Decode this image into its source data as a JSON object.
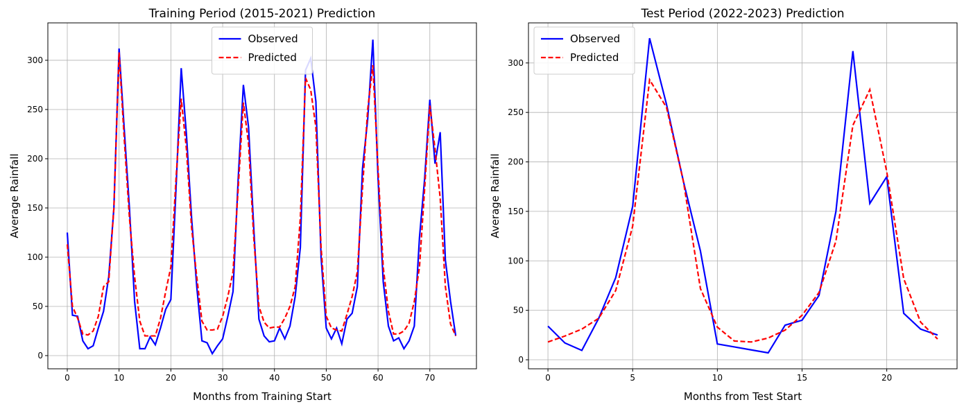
{
  "chart_data": [
    {
      "type": "line",
      "title": "Training Period (2015-2021) Prediction",
      "x_label": "Months from Training Start",
      "y_label": "Average Rainfall",
      "x": [
        0,
        1,
        2,
        3,
        4,
        5,
        6,
        7,
        8,
        9,
        10,
        11,
        12,
        13,
        14,
        15,
        16,
        17,
        18,
        19,
        20,
        21,
        22,
        23,
        24,
        25,
        26,
        27,
        28,
        29,
        30,
        31,
        32,
        33,
        34,
        35,
        36,
        37,
        38,
        39,
        40,
        41,
        42,
        43,
        44,
        45,
        46,
        47,
        48,
        49,
        50,
        51,
        52,
        53,
        54,
        55,
        56,
        57,
        58,
        59,
        60,
        61,
        62,
        63,
        64,
        65,
        66,
        67,
        68,
        69,
        70,
        71,
        72,
        73,
        74,
        75
      ],
      "series": [
        {
          "name": "Observed",
          "color": "#0000ff",
          "dash": false,
          "values": [
            125,
            41,
            40,
            15,
            7,
            10,
            28,
            45,
            80,
            150,
            312,
            230,
            150,
            55,
            7,
            7,
            19,
            11,
            28,
            47,
            57,
            170,
            292,
            225,
            140,
            70,
            15,
            13,
            2,
            10,
            17,
            40,
            65,
            180,
            275,
            232,
            130,
            37,
            20,
            14,
            15,
            28,
            17,
            30,
            60,
            110,
            290,
            302,
            258,
            100,
            28,
            17,
            28,
            12,
            37,
            43,
            70,
            190,
            240,
            321,
            180,
            75,
            30,
            15,
            18,
            7,
            15,
            30,
            120,
            180,
            260,
            195,
            227,
            97,
            55,
            20
          ]
        },
        {
          "name": "Predicted",
          "color": "#ff0000",
          "dash": true,
          "values": [
            113,
            50,
            38,
            22,
            21,
            25,
            40,
            70,
            75,
            150,
            308,
            220,
            140,
            80,
            35,
            20,
            20,
            20,
            38,
            65,
            90,
            180,
            261,
            210,
            130,
            80,
            35,
            26,
            26,
            27,
            40,
            60,
            85,
            170,
            257,
            215,
            120,
            50,
            34,
            28,
            29,
            29,
            38,
            50,
            70,
            140,
            282,
            270,
            232,
            110,
            40,
            28,
            26,
            25,
            42,
            60,
            85,
            170,
            250,
            295,
            190,
            90,
            45,
            22,
            22,
            25,
            33,
            55,
            90,
            170,
            254,
            210,
            160,
            70,
            32,
            20
          ]
        }
      ],
      "xlim": [
        -3.75,
        79
      ],
      "ylim": [
        -13.4,
        338
      ],
      "xticks": [
        0,
        10,
        20,
        30,
        40,
        50,
        60,
        70
      ],
      "yticks": [
        0,
        50,
        100,
        150,
        200,
        250,
        300
      ],
      "grid": true,
      "legend": "upper center"
    },
    {
      "type": "line",
      "title": "Test Period (2022-2023) Prediction",
      "x_label": "Months from Test Start",
      "y_label": "Average Rainfall",
      "x": [
        0,
        1,
        2,
        3,
        4,
        5,
        6,
        7,
        8,
        9,
        10,
        11,
        12,
        13,
        14,
        15,
        16,
        17,
        18,
        19,
        20,
        21,
        22,
        23
      ],
      "series": [
        {
          "name": "Observed",
          "color": "#0000ff",
          "dash": false,
          "values": [
            34,
            17,
            9.5,
            42,
            83,
            155,
            325,
            258,
            180,
            110,
            16,
            13,
            10,
            7,
            35,
            40,
            65,
            150,
            312,
            158,
            185,
            47,
            31,
            25
          ]
        },
        {
          "name": "Predicted",
          "color": "#ff0000",
          "dash": true,
          "values": [
            18,
            24,
            31,
            42,
            70,
            135,
            283,
            255,
            180,
            72,
            33,
            19,
            18,
            22,
            30,
            45,
            68,
            120,
            237,
            273,
            190,
            82,
            38,
            21
          ]
        }
      ],
      "xlim": [
        -1.15,
        24.15
      ],
      "ylim": [
        -9.1,
        340.5
      ],
      "xticks": [
        0,
        5,
        10,
        15,
        20
      ],
      "yticks": [
        0,
        50,
        100,
        150,
        200,
        250,
        300
      ],
      "grid": true,
      "legend": "upper left"
    }
  ]
}
